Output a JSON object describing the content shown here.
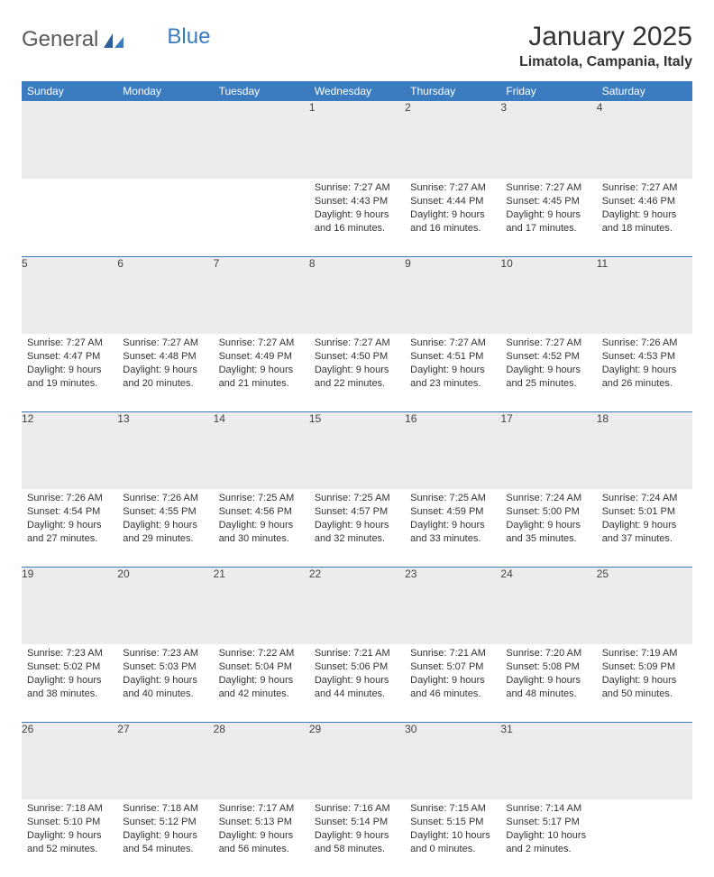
{
  "logo": {
    "text1": "General",
    "text2": "Blue"
  },
  "title": "January 2025",
  "location": "Limatola, Campania, Italy",
  "colors": {
    "header_bg": "#3b7bbf",
    "header_text": "#ffffff",
    "daynum_bg": "#ececec",
    "row_divider": "#3b7bbf",
    "body_text": "#333333"
  },
  "daysOfWeek": [
    "Sunday",
    "Monday",
    "Tuesday",
    "Wednesday",
    "Thursday",
    "Friday",
    "Saturday"
  ],
  "weeks": [
    [
      {
        "n": "",
        "sunrise": "",
        "sunset": "",
        "daylight": ""
      },
      {
        "n": "",
        "sunrise": "",
        "sunset": "",
        "daylight": ""
      },
      {
        "n": "",
        "sunrise": "",
        "sunset": "",
        "daylight": ""
      },
      {
        "n": "1",
        "sunrise": "Sunrise: 7:27 AM",
        "sunset": "Sunset: 4:43 PM",
        "daylight": "Daylight: 9 hours and 16 minutes."
      },
      {
        "n": "2",
        "sunrise": "Sunrise: 7:27 AM",
        "sunset": "Sunset: 4:44 PM",
        "daylight": "Daylight: 9 hours and 16 minutes."
      },
      {
        "n": "3",
        "sunrise": "Sunrise: 7:27 AM",
        "sunset": "Sunset: 4:45 PM",
        "daylight": "Daylight: 9 hours and 17 minutes."
      },
      {
        "n": "4",
        "sunrise": "Sunrise: 7:27 AM",
        "sunset": "Sunset: 4:46 PM",
        "daylight": "Daylight: 9 hours and 18 minutes."
      }
    ],
    [
      {
        "n": "5",
        "sunrise": "Sunrise: 7:27 AM",
        "sunset": "Sunset: 4:47 PM",
        "daylight": "Daylight: 9 hours and 19 minutes."
      },
      {
        "n": "6",
        "sunrise": "Sunrise: 7:27 AM",
        "sunset": "Sunset: 4:48 PM",
        "daylight": "Daylight: 9 hours and 20 minutes."
      },
      {
        "n": "7",
        "sunrise": "Sunrise: 7:27 AM",
        "sunset": "Sunset: 4:49 PM",
        "daylight": "Daylight: 9 hours and 21 minutes."
      },
      {
        "n": "8",
        "sunrise": "Sunrise: 7:27 AM",
        "sunset": "Sunset: 4:50 PM",
        "daylight": "Daylight: 9 hours and 22 minutes."
      },
      {
        "n": "9",
        "sunrise": "Sunrise: 7:27 AM",
        "sunset": "Sunset: 4:51 PM",
        "daylight": "Daylight: 9 hours and 23 minutes."
      },
      {
        "n": "10",
        "sunrise": "Sunrise: 7:27 AM",
        "sunset": "Sunset: 4:52 PM",
        "daylight": "Daylight: 9 hours and 25 minutes."
      },
      {
        "n": "11",
        "sunrise": "Sunrise: 7:26 AM",
        "sunset": "Sunset: 4:53 PM",
        "daylight": "Daylight: 9 hours and 26 minutes."
      }
    ],
    [
      {
        "n": "12",
        "sunrise": "Sunrise: 7:26 AM",
        "sunset": "Sunset: 4:54 PM",
        "daylight": "Daylight: 9 hours and 27 minutes."
      },
      {
        "n": "13",
        "sunrise": "Sunrise: 7:26 AM",
        "sunset": "Sunset: 4:55 PM",
        "daylight": "Daylight: 9 hours and 29 minutes."
      },
      {
        "n": "14",
        "sunrise": "Sunrise: 7:25 AM",
        "sunset": "Sunset: 4:56 PM",
        "daylight": "Daylight: 9 hours and 30 minutes."
      },
      {
        "n": "15",
        "sunrise": "Sunrise: 7:25 AM",
        "sunset": "Sunset: 4:57 PM",
        "daylight": "Daylight: 9 hours and 32 minutes."
      },
      {
        "n": "16",
        "sunrise": "Sunrise: 7:25 AM",
        "sunset": "Sunset: 4:59 PM",
        "daylight": "Daylight: 9 hours and 33 minutes."
      },
      {
        "n": "17",
        "sunrise": "Sunrise: 7:24 AM",
        "sunset": "Sunset: 5:00 PM",
        "daylight": "Daylight: 9 hours and 35 minutes."
      },
      {
        "n": "18",
        "sunrise": "Sunrise: 7:24 AM",
        "sunset": "Sunset: 5:01 PM",
        "daylight": "Daylight: 9 hours and 37 minutes."
      }
    ],
    [
      {
        "n": "19",
        "sunrise": "Sunrise: 7:23 AM",
        "sunset": "Sunset: 5:02 PM",
        "daylight": "Daylight: 9 hours and 38 minutes."
      },
      {
        "n": "20",
        "sunrise": "Sunrise: 7:23 AM",
        "sunset": "Sunset: 5:03 PM",
        "daylight": "Daylight: 9 hours and 40 minutes."
      },
      {
        "n": "21",
        "sunrise": "Sunrise: 7:22 AM",
        "sunset": "Sunset: 5:04 PM",
        "daylight": "Daylight: 9 hours and 42 minutes."
      },
      {
        "n": "22",
        "sunrise": "Sunrise: 7:21 AM",
        "sunset": "Sunset: 5:06 PM",
        "daylight": "Daylight: 9 hours and 44 minutes."
      },
      {
        "n": "23",
        "sunrise": "Sunrise: 7:21 AM",
        "sunset": "Sunset: 5:07 PM",
        "daylight": "Daylight: 9 hours and 46 minutes."
      },
      {
        "n": "24",
        "sunrise": "Sunrise: 7:20 AM",
        "sunset": "Sunset: 5:08 PM",
        "daylight": "Daylight: 9 hours and 48 minutes."
      },
      {
        "n": "25",
        "sunrise": "Sunrise: 7:19 AM",
        "sunset": "Sunset: 5:09 PM",
        "daylight": "Daylight: 9 hours and 50 minutes."
      }
    ],
    [
      {
        "n": "26",
        "sunrise": "Sunrise: 7:18 AM",
        "sunset": "Sunset: 5:10 PM",
        "daylight": "Daylight: 9 hours and 52 minutes."
      },
      {
        "n": "27",
        "sunrise": "Sunrise: 7:18 AM",
        "sunset": "Sunset: 5:12 PM",
        "daylight": "Daylight: 9 hours and 54 minutes."
      },
      {
        "n": "28",
        "sunrise": "Sunrise: 7:17 AM",
        "sunset": "Sunset: 5:13 PM",
        "daylight": "Daylight: 9 hours and 56 minutes."
      },
      {
        "n": "29",
        "sunrise": "Sunrise: 7:16 AM",
        "sunset": "Sunset: 5:14 PM",
        "daylight": "Daylight: 9 hours and 58 minutes."
      },
      {
        "n": "30",
        "sunrise": "Sunrise: 7:15 AM",
        "sunset": "Sunset: 5:15 PM",
        "daylight": "Daylight: 10 hours and 0 minutes."
      },
      {
        "n": "31",
        "sunrise": "Sunrise: 7:14 AM",
        "sunset": "Sunset: 5:17 PM",
        "daylight": "Daylight: 10 hours and 2 minutes."
      },
      {
        "n": "",
        "sunrise": "",
        "sunset": "",
        "daylight": ""
      }
    ]
  ]
}
